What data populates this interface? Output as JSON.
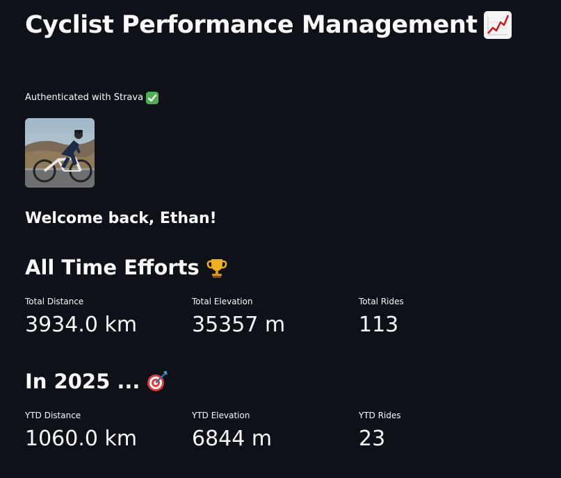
{
  "header": {
    "title": "Cyclist Performance Management",
    "title_icon": "chart-increasing-icon"
  },
  "auth": {
    "text": "Authenticated with Strava",
    "icon": "check-mark-icon",
    "icon_color": "#4caf50"
  },
  "profile": {
    "avatar": "cyclist-photo",
    "welcome": "Welcome back, Ethan!"
  },
  "all_time": {
    "heading": "All Time Efforts",
    "icon": "trophy-icon",
    "metrics": [
      {
        "label": "Total Distance",
        "value": "3934.0 km"
      },
      {
        "label": "Total Elevation",
        "value": "35357 m"
      },
      {
        "label": "Total Rides",
        "value": "113"
      }
    ]
  },
  "ytd": {
    "heading": "In 2025 ...",
    "icon": "bullseye-dart-icon",
    "metrics": [
      {
        "label": "YTD Distance",
        "value": "1060.0 km"
      },
      {
        "label": "YTD Elevation",
        "value": "6844 m"
      },
      {
        "label": "YTD Rides",
        "value": "23"
      }
    ]
  },
  "colors": {
    "background": "#0e1117",
    "text": "#fafafa"
  }
}
